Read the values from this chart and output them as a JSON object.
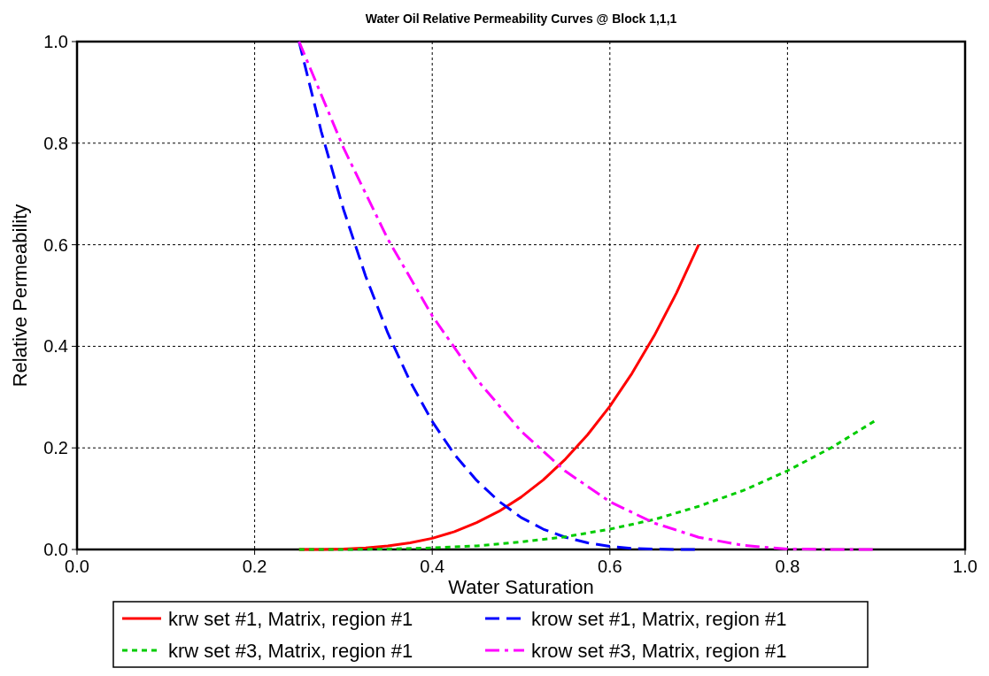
{
  "chart_data": {
    "type": "line",
    "title": "Water Oil Relative Permeability Curves @ Block 1,1,1",
    "xlabel": "Water Saturation",
    "ylabel": "Relative Permeability",
    "xlim": [
      0,
      1
    ],
    "xticks": [
      {
        "value": 0,
        "label": "0.0"
      },
      0.2,
      0.4,
      0.6,
      0.8,
      {
        "value": 1,
        "label": "1.0"
      }
    ],
    "ylim": [
      0,
      1
    ],
    "yticks": [
      {
        "value": 0,
        "label": "0.0"
      },
      0.2,
      0.4,
      0.6,
      0.8,
      {
        "value": 1,
        "label": "1.0"
      }
    ],
    "grid": true,
    "legend": "bottom",
    "marker": "none",
    "series": [
      {
        "name": "krw set #1, Matrix, region #1",
        "color": "#ff0000",
        "line_style": "solid",
        "x": [
          0.25,
          0.275,
          0.3,
          0.325,
          0.35,
          0.375,
          0.4,
          0.425,
          0.45,
          0.475,
          0.5,
          0.525,
          0.55,
          0.575,
          0.6,
          0.625,
          0.65,
          0.675,
          0.7
        ],
        "values": [
          0,
          0,
          0.001,
          0.003,
          0.007,
          0.013,
          0.022,
          0.035,
          0.053,
          0.075,
          0.103,
          0.137,
          0.178,
          0.226,
          0.282,
          0.347,
          0.421,
          0.505,
          0.6
        ]
      },
      {
        "name": "krow set #1, Matrix, region #1",
        "color": "#0000ff",
        "line_style": "dashed",
        "x": [
          0.25,
          0.275,
          0.3,
          0.325,
          0.35,
          0.375,
          0.4,
          0.425,
          0.45,
          0.475,
          0.5,
          0.525,
          0.55,
          0.575,
          0.6,
          0.625,
          0.65,
          0.675,
          0.7
        ],
        "values": [
          1,
          0.823,
          0.67,
          0.538,
          0.426,
          0.331,
          0.252,
          0.187,
          0.136,
          0.095,
          0.063,
          0.04,
          0.024,
          0.013,
          0.006,
          0.002,
          0.001,
          0,
          0
        ]
      },
      {
        "name": "krw set #3, Matrix, region #1",
        "color": "#00cc00",
        "line_style": "dotted",
        "x": [
          0.25,
          0.3,
          0.35,
          0.4,
          0.45,
          0.5,
          0.55,
          0.6,
          0.65,
          0.7,
          0.75,
          0.8,
          0.85,
          0.9
        ],
        "values": [
          0,
          0,
          0.001,
          0.003,
          0.007,
          0.015,
          0.025,
          0.04,
          0.059,
          0.085,
          0.116,
          0.155,
          0.201,
          0.255
        ]
      },
      {
        "name": "krow set #3, Matrix, region #1",
        "color": "#ff00ff",
        "line_style": "dashdot",
        "x": [
          0.25,
          0.3,
          0.35,
          0.4,
          0.45,
          0.5,
          0.55,
          0.6,
          0.65,
          0.7,
          0.75,
          0.8,
          0.85,
          0.9
        ],
        "values": [
          1,
          0.791,
          0.611,
          0.46,
          0.335,
          0.233,
          0.154,
          0.094,
          0.052,
          0.024,
          0.008,
          0.001,
          0,
          0
        ]
      }
    ]
  }
}
